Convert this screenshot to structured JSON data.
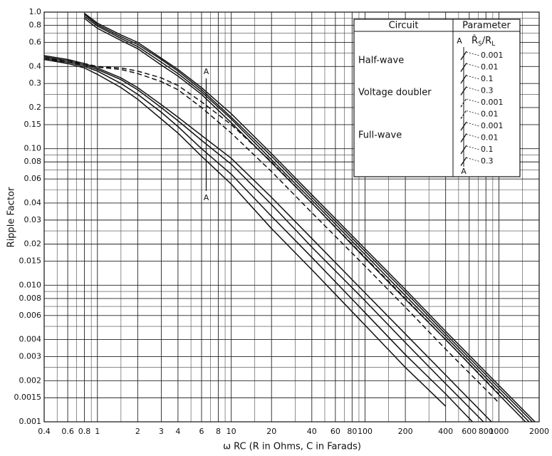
{
  "chart_data": {
    "type": "line",
    "y_label": "Ripple Factor",
    "x_label": "ω RC (R in Ohms, C in Farads)",
    "xscale": "log",
    "yscale": "log",
    "grid": true,
    "color": "#111111",
    "xlim": [
      0.4,
      2000
    ],
    "xticks": [
      0.4,
      0.6,
      0.8,
      1,
      2,
      3,
      4,
      6,
      8,
      10,
      20,
      40,
      60,
      80,
      100,
      200,
      400,
      600,
      800,
      1000,
      2000
    ],
    "xminor": [
      0.5,
      0.7,
      0.9,
      1.5,
      5,
      7,
      9,
      15,
      30,
      50,
      70,
      90,
      150,
      300,
      500,
      700,
      900,
      1500
    ],
    "ylim": [
      0.001,
      1
    ],
    "yticks": [
      {
        "value": 1,
        "label": "1.0"
      },
      0.8,
      0.6,
      0.4,
      0.3,
      0.2,
      0.15,
      {
        "value": 0.1,
        "label": "0.10"
      },
      0.08,
      0.06,
      0.04,
      0.03,
      0.02,
      0.015,
      {
        "value": 0.01,
        "label": "0.010"
      },
      0.008,
      0.006,
      0.004,
      0.003,
      0.002,
      0.0015,
      0.001
    ],
    "yminor": [
      0.9,
      0.7,
      0.5,
      0.25,
      0.09,
      0.07,
      0.05,
      0.025,
      0.009,
      0.007,
      0.005,
      0.0025
    ],
    "x": [
      0.4,
      0.6,
      0.8,
      1,
      1.5,
      2,
      3,
      4,
      6,
      10,
      20,
      40,
      100,
      200,
      400,
      1000,
      2000
    ],
    "legend_headers": [
      "Circuit",
      "Parameter"
    ],
    "legend_param_header": [
      "R̂",
      "S",
      "/R",
      "L"
    ],
    "marker": {
      "label": "A",
      "x": 6.5
    },
    "groups": [
      {
        "name": "Half-wave",
        "dashed": false,
        "series": [
          {
            "name": "0.001",
            "values": [
              null,
              null,
              0.98,
              0.83,
              0.68,
              0.6,
              0.46,
              0.38,
              0.28,
              0.18,
              0.092,
              0.046,
              0.0185,
              0.0093,
              0.0046,
              0.00185,
              0.00093
            ]
          },
          {
            "name": "0.01",
            "values": [
              null,
              null,
              0.96,
              0.81,
              0.66,
              0.58,
              0.45,
              0.37,
              0.27,
              0.17,
              0.088,
              0.044,
              0.0177,
              0.0089,
              0.0044,
              0.00177,
              0.00089
            ]
          },
          {
            "name": "0.1",
            "values": [
              null,
              null,
              0.93,
              0.79,
              0.64,
              0.56,
              0.43,
              0.355,
              0.26,
              0.165,
              0.083,
              0.042,
              0.0168,
              0.0084,
              0.0042,
              0.00168,
              0.00084
            ]
          },
          {
            "name": "0.3",
            "values": [
              null,
              null,
              0.9,
              0.76,
              0.62,
              0.54,
              0.41,
              0.34,
              0.25,
              0.155,
              0.079,
              0.04,
              0.0158,
              0.0079,
              0.004,
              0.00158,
              0.00079
            ]
          }
        ]
      },
      {
        "name": "Voltage doubler",
        "dashed": true,
        "series": [
          {
            "name": "0.001",
            "values": [
              0.46,
              0.44,
              0.42,
              0.4,
              0.39,
              0.37,
              0.33,
              0.29,
              0.22,
              0.15,
              0.08,
              0.04,
              0.016,
              0.008,
              0.004,
              0.0016,
              null
            ]
          },
          {
            "name": "0.01",
            "values": [
              0.45,
              0.43,
              0.41,
              0.395,
              0.38,
              0.355,
              0.31,
              0.27,
              0.2,
              0.13,
              0.068,
              0.034,
              0.0138,
              0.0069,
              0.0034,
              0.00138,
              null
            ]
          }
        ]
      },
      {
        "name": "Full-wave",
        "dashed": false,
        "series": [
          {
            "name": "0.001",
            "values": [
              0.48,
              0.45,
              0.42,
              0.39,
              0.33,
              0.28,
              0.21,
              0.17,
              0.125,
              0.085,
              0.044,
              0.022,
              0.0088,
              0.0044,
              0.0022,
              0.00088,
              null
            ]
          },
          {
            "name": "0.01",
            "values": [
              0.47,
              0.44,
              0.41,
              0.38,
              0.32,
              0.27,
              0.2,
              0.16,
              0.115,
              0.077,
              0.039,
              0.019,
              0.0077,
              0.0038,
              0.0019,
              0.00077,
              null
            ]
          },
          {
            "name": "0.1",
            "values": [
              0.46,
              0.43,
              0.4,
              0.37,
              0.3,
              0.25,
              0.185,
              0.145,
              0.1,
              0.065,
              0.032,
              0.016,
              0.0063,
              0.0031,
              0.0016,
              0.00063,
              null
            ]
          },
          {
            "name": "0.3",
            "values": [
              0.45,
              0.42,
              0.39,
              0.35,
              0.28,
              0.23,
              0.165,
              0.13,
              0.088,
              0.055,
              0.026,
              0.013,
              0.0051,
              0.0025,
              0.0013,
              null,
              null
            ]
          }
        ]
      }
    ]
  }
}
